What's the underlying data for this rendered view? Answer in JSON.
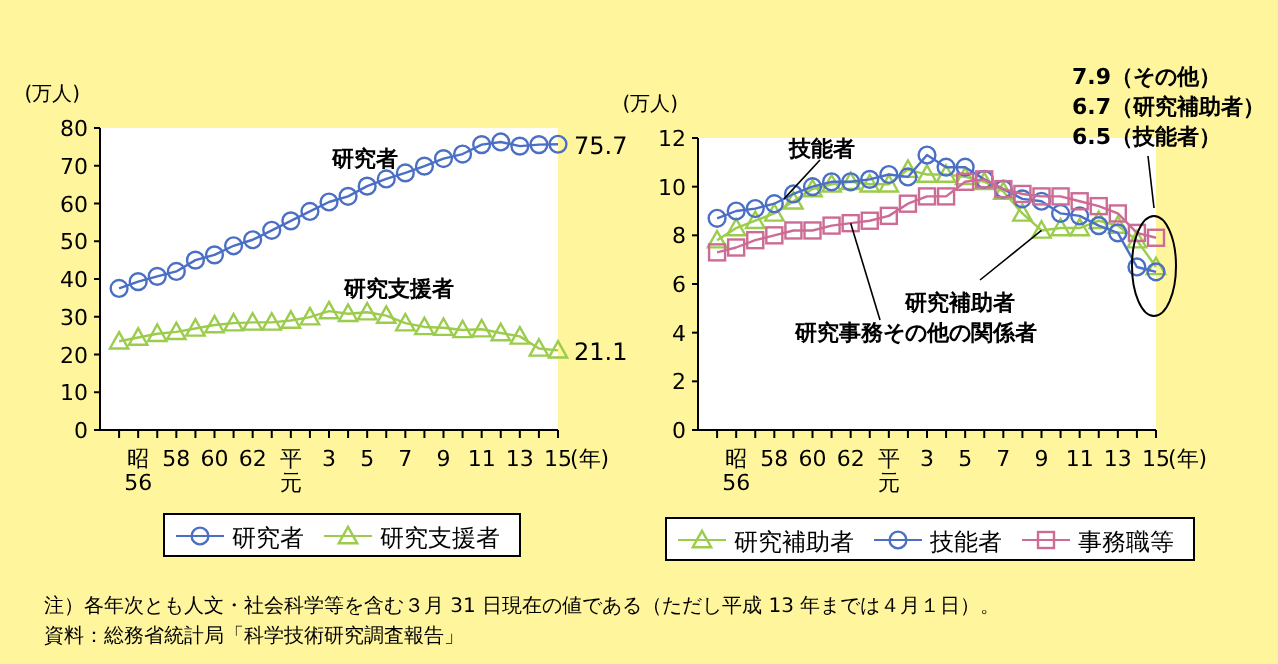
{
  "chart_data": [
    {
      "type": "line",
      "ylabel": "(万人)",
      "xlabel": "(年)",
      "categories": [
        null,
        "昭\n56",
        null,
        "58",
        null,
        "60",
        null,
        "62",
        null,
        "平元",
        null,
        "3",
        null,
        "5",
        null,
        "7",
        null,
        "9",
        null,
        "11",
        null,
        "13",
        null,
        "15"
      ],
      "ylim": [
        0,
        80
      ],
      "yticks": [
        0,
        10,
        20,
        30,
        40,
        50,
        60,
        70,
        80
      ],
      "grid": false,
      "legend": "bottom",
      "series": [
        {
          "name": "研究者",
          "color": "#4a6fc4",
          "marker": "circle",
          "values": [
            37.5,
            39.3,
            40.7,
            42,
            45,
            46.4,
            48.8,
            50.4,
            52.9,
            55.4,
            57.9,
            60.4,
            61.9,
            64.6,
            66.5,
            68.1,
            69.9,
            71.9,
            73.1,
            75.6,
            76.3,
            75.2,
            75.6,
            75.7
          ]
        },
        {
          "name": "研究支援者",
          "color": "#9ccc4c",
          "marker": "triangle",
          "values": [
            23.5,
            24.5,
            25.5,
            26,
            26.9,
            27.8,
            28.3,
            28.5,
            28.5,
            29,
            29.9,
            31.5,
            30.8,
            31.2,
            30.3,
            28.3,
            27.3,
            27.1,
            26.5,
            26.7,
            25.7,
            24.8,
            21.6,
            21.1
          ]
        }
      ],
      "annotations": [
        "研究者",
        "研究支援者",
        {
          "text": "75.7",
          "x": "15",
          "y": 75.7
        },
        {
          "text": "21.1",
          "x": "15",
          "y": 21.1
        }
      ]
    },
    {
      "type": "line",
      "ylabel": "(万人)",
      "xlabel": "(年)",
      "categories": [
        null,
        "昭\n56",
        null,
        "58",
        null,
        "60",
        null,
        "62",
        null,
        "平元",
        null,
        "3",
        null,
        "5",
        null,
        "7",
        null,
        "9",
        null,
        "11",
        null,
        "13",
        null,
        "15"
      ],
      "ylim": [
        0,
        12
      ],
      "yticks": [
        0,
        2,
        4,
        6,
        8,
        10,
        12
      ],
      "grid": false,
      "legend": "bottom",
      "series": [
        {
          "name": "研究補助者",
          "color": "#9ccc4c",
          "marker": "triangle",
          "values": [
            7.8,
            8.3,
            8.6,
            8.9,
            9.4,
            9.9,
            10.1,
            10.2,
            10.1,
            10.1,
            10.7,
            10.5,
            10.5,
            10.4,
            10.2,
            9.8,
            8.9,
            8.2,
            8.3,
            8.3,
            8.6,
            8.4,
            7.8,
            6.7
          ]
        },
        {
          "name": "技能者",
          "color": "#4a6fc4",
          "marker": "circle",
          "values": [
            8.7,
            9,
            9.1,
            9.3,
            9.7,
            10,
            10.2,
            10.2,
            10.3,
            10.5,
            10.4,
            11.3,
            10.8,
            10.8,
            10.3,
            9.9,
            9.5,
            9.4,
            8.9,
            8.8,
            8.4,
            8.1,
            6.7,
            6.5
          ]
        },
        {
          "name": "事務職等",
          "color": "#cc6c94",
          "marker": "square",
          "values": [
            7.3,
            7.5,
            7.8,
            8,
            8.2,
            8.2,
            8.4,
            8.5,
            8.6,
            8.8,
            9.3,
            9.6,
            9.6,
            10.2,
            10.3,
            9.9,
            9.7,
            9.6,
            9.6,
            9.4,
            9.2,
            8.9,
            8.1,
            7.9
          ]
        }
      ],
      "annotations": [
        {
          "text": "技能者",
          "y": 9.5
        },
        {
          "text": "研究補助者",
          "x": "9",
          "y": 8.2
        },
        {
          "text": "研究事務その他の関係者",
          "x": "62",
          "y": 8.5
        },
        "7.9（その他）",
        "6.7（研究補助者）",
        "6.5（技能者）",
        "注）各年次とも人文・社会科学等を含む３月 31 日現在の値である（ただし平成 13 年までは４月１日）。",
        "資料：総務省統計局「科学技術研究調査報告」"
      ]
    }
  ]
}
